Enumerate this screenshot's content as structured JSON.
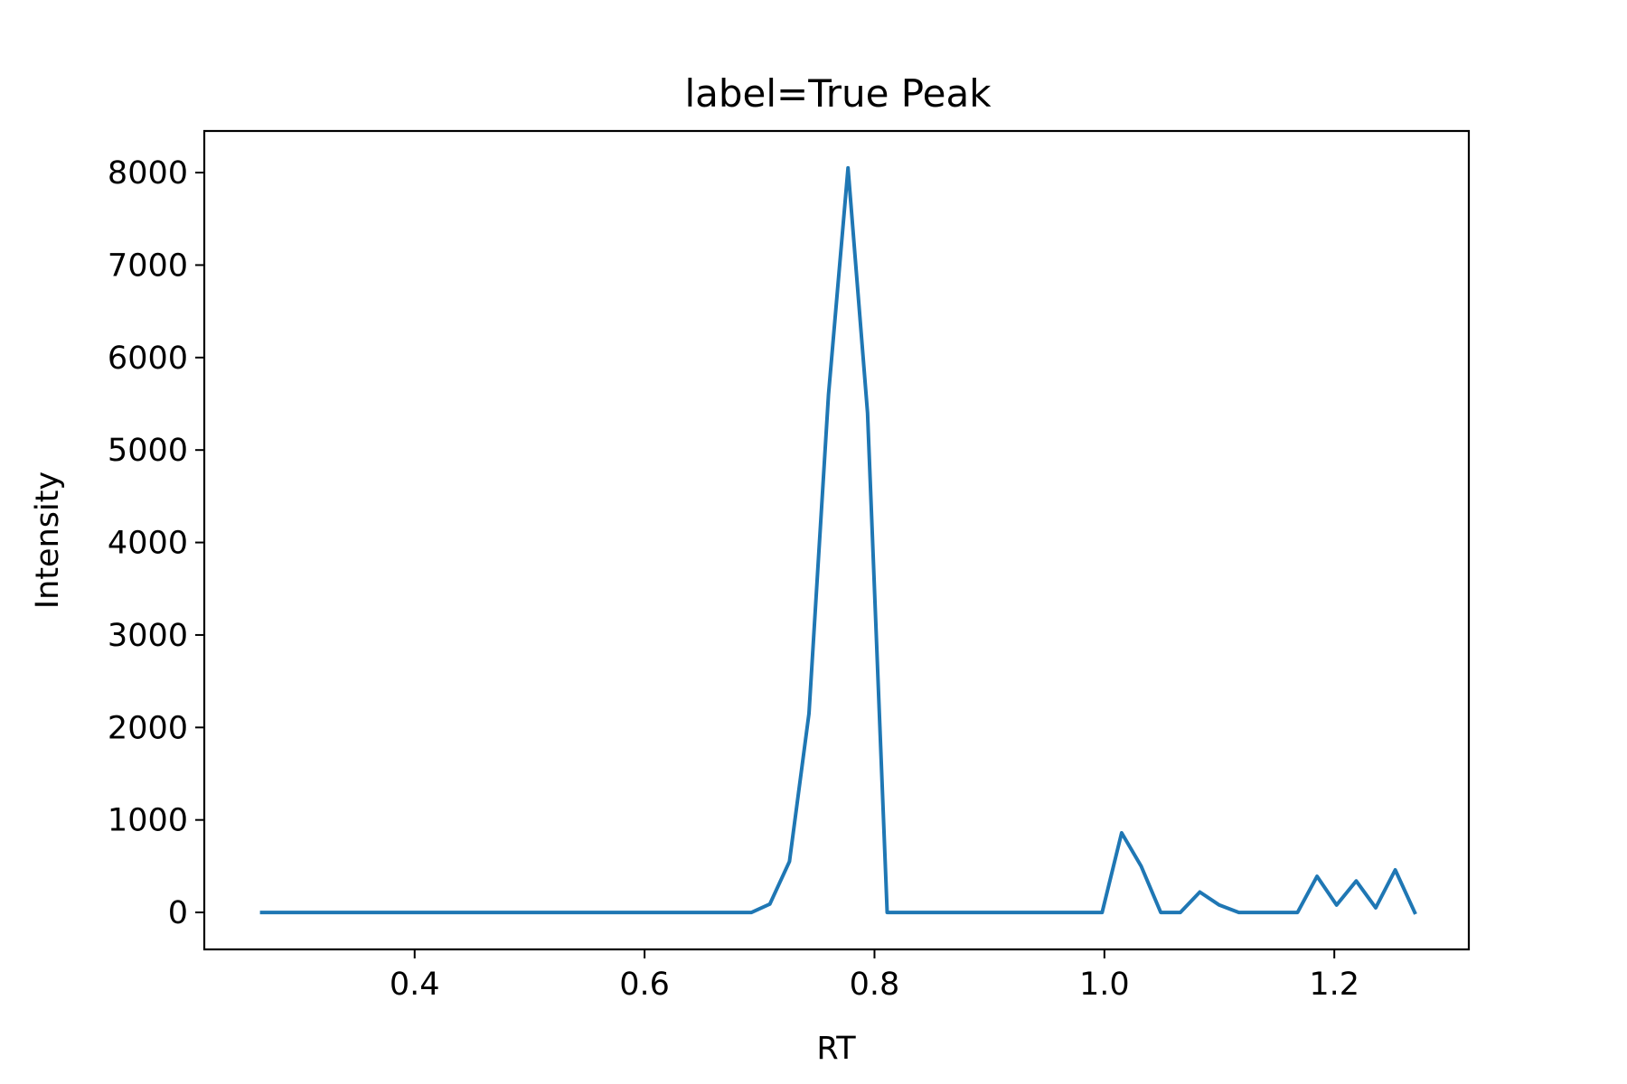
{
  "chart_data": {
    "type": "line",
    "title": "label=True Peak",
    "xlabel": "RT",
    "ylabel": "Intensity",
    "xlim": [
      0.217,
      1.317
    ],
    "ylim": [
      -400,
      8450
    ],
    "xticks": [
      0.4,
      0.6,
      0.8,
      1.0,
      1.2
    ],
    "xtick_labels": [
      "0.4",
      "0.6",
      "0.8",
      "1.0",
      "1.2"
    ],
    "yticks": [
      0,
      1000,
      2000,
      3000,
      4000,
      5000,
      6000,
      7000,
      8000
    ],
    "ytick_labels": [
      "0",
      "1000",
      "2000",
      "3000",
      "4000",
      "5000",
      "6000",
      "7000",
      "8000"
    ],
    "grid": false,
    "series": [
      {
        "color": "#1f77b4",
        "x": [
          0.267,
          0.283,
          0.3,
          0.317,
          0.333,
          0.35,
          0.367,
          0.383,
          0.4,
          0.417,
          0.433,
          0.45,
          0.467,
          0.483,
          0.5,
          0.517,
          0.533,
          0.55,
          0.567,
          0.583,
          0.6,
          0.617,
          0.633,
          0.65,
          0.667,
          0.683,
          0.693,
          0.709,
          0.726,
          0.743,
          0.76,
          0.777,
          0.794,
          0.811,
          0.828,
          0.845,
          0.862,
          0.879,
          0.896,
          0.913,
          0.93,
          0.947,
          0.964,
          0.981,
          0.998,
          1.015,
          1.032,
          1.049,
          1.066,
          1.083,
          1.1,
          1.117,
          1.134,
          1.151,
          1.168,
          1.185,
          1.202,
          1.219,
          1.236,
          1.253,
          1.27
        ],
        "y": [
          0,
          0,
          0,
          0,
          0,
          0,
          0,
          0,
          0,
          0,
          0,
          0,
          0,
          0,
          0,
          0,
          0,
          0,
          0,
          0,
          0,
          0,
          0,
          0,
          0,
          0,
          0,
          90,
          550,
          2150,
          5600,
          8050,
          5400,
          0,
          0,
          0,
          0,
          0,
          0,
          0,
          0,
          0,
          0,
          0,
          0,
          860,
          500,
          0,
          0,
          220,
          80,
          0,
          0,
          0,
          0,
          390,
          80,
          340,
          50,
          460,
          0
        ]
      }
    ]
  }
}
